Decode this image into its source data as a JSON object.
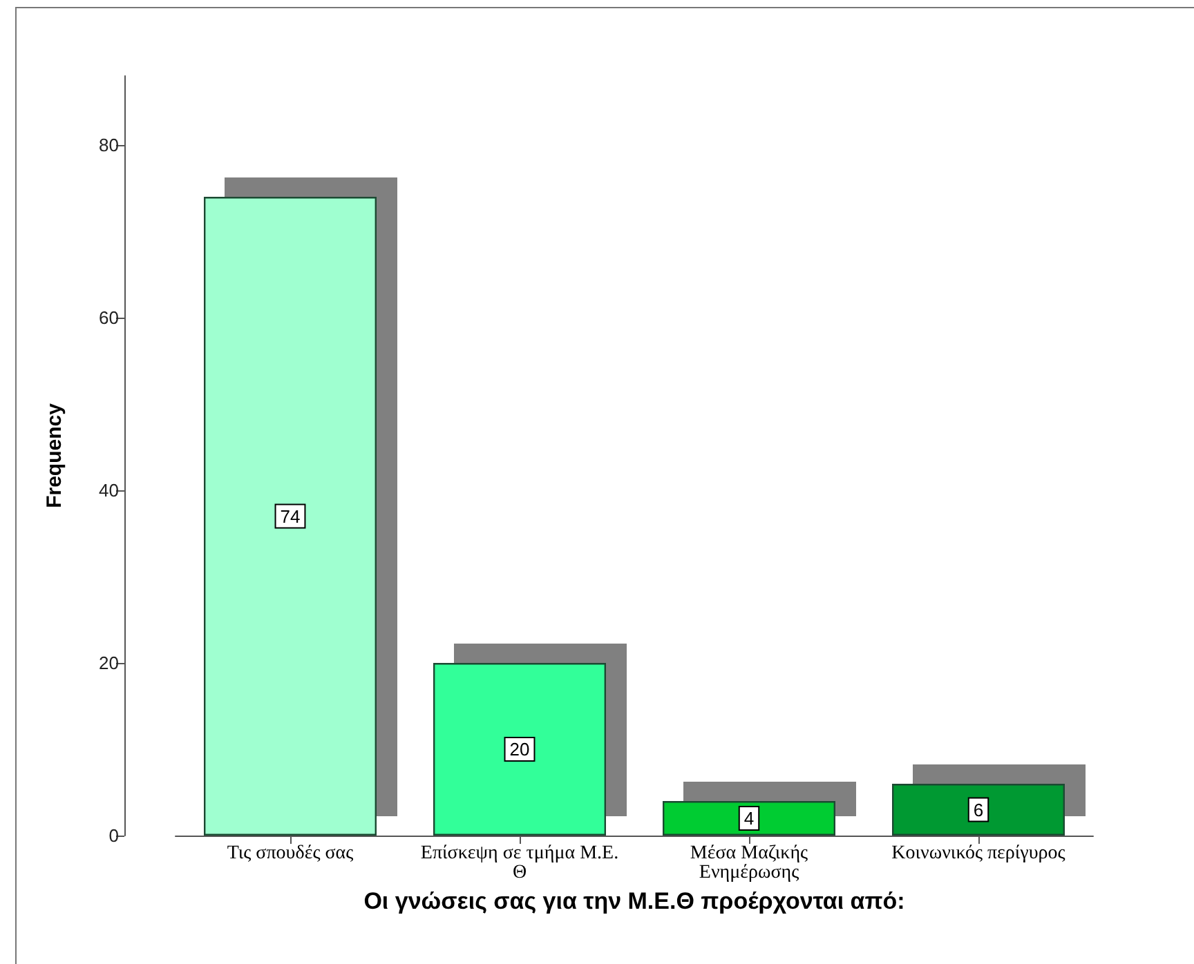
{
  "chart_data": {
    "type": "bar",
    "xlabel": "Οι γνώσεις σας για την Μ.Ε.Θ προέρχονται από:",
    "ylabel": "Frequency",
    "categories": [
      "Τις σπουδές σας",
      "Επίσκεψη σε τμήμα Μ.Ε. Θ",
      "Μέσα Μαζικής Ενημέρωσης",
      "Κοινωνικός περίγυρος"
    ],
    "values": [
      74,
      20,
      4,
      6
    ],
    "colors": [
      "#9fffd0",
      "#33ff99",
      "#00cc33",
      "#009933"
    ],
    "ylim": [
      0,
      88
    ],
    "yticks": [
      0,
      20,
      40,
      60,
      80
    ],
    "grid": false,
    "data_labels": true
  }
}
